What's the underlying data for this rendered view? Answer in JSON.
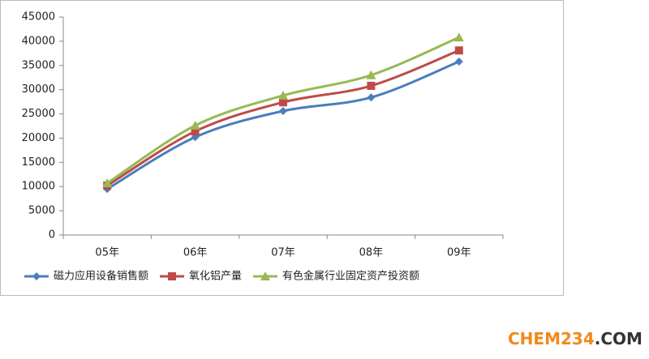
{
  "chart_data": {
    "type": "line",
    "categories": [
      "05年",
      "06年",
      "07年",
      "08年",
      "09年"
    ],
    "series": [
      {
        "name": "磁力应用设备销售额",
        "color": "#4a7ebb",
        "marker": "diamond",
        "values": [
          9500,
          20200,
          25600,
          28400,
          35800
        ]
      },
      {
        "name": "氧化铝产量",
        "color": "#be4b48",
        "marker": "square",
        "values": [
          10200,
          21400,
          27400,
          30800,
          38100
        ]
      },
      {
        "name": "有色金属行业固定资产投资额",
        "color": "#98b954",
        "marker": "triangle",
        "values": [
          10700,
          22600,
          28800,
          33000,
          40800
        ]
      }
    ],
    "ylim": [
      0,
      45000
    ],
    "yticks": [
      0,
      5000,
      10000,
      15000,
      20000,
      25000,
      30000,
      35000,
      40000,
      45000
    ],
    "grid": false,
    "legend": "bottom",
    "watermark": {
      "brand": "CHEM234",
      "suffix": ".COM"
    }
  }
}
